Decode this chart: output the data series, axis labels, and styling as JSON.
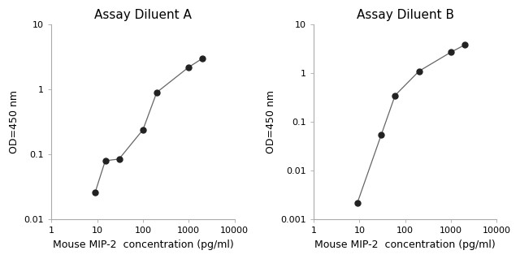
{
  "plot_A": {
    "title": "Assay Diluent A",
    "x": [
      9,
      15,
      30,
      100,
      200,
      1000,
      2000
    ],
    "y": [
      0.026,
      0.08,
      0.085,
      0.24,
      0.9,
      2.2,
      3.0
    ],
    "xlim": [
      1,
      10000
    ],
    "ylim": [
      0.01,
      10
    ],
    "xlabel": "Mouse MIP-2  concentration (pg/ml)",
    "ylabel": "OD=450 nm",
    "xticks": [
      1,
      10,
      100,
      1000,
      10000
    ],
    "yticks": [
      0.01,
      0.1,
      1,
      10
    ],
    "yticklabels": [
      "0.01",
      "0.1",
      "1",
      "10"
    ]
  },
  "plot_B": {
    "title": "Assay Diluent B",
    "x": [
      9,
      30,
      60,
      200,
      1000,
      2000
    ],
    "y": [
      0.0022,
      0.055,
      0.35,
      1.1,
      2.7,
      3.8
    ],
    "xlim": [
      1,
      10000
    ],
    "ylim": [
      0.001,
      10
    ],
    "xlabel": "Mouse MIP-2  concentration (pg/ml)",
    "ylabel": "OD=450 nm",
    "xticks": [
      1,
      10,
      100,
      1000,
      10000
    ],
    "yticks": [
      0.001,
      0.01,
      0.1,
      1,
      10
    ],
    "yticklabels": [
      "0.001",
      "0.01",
      "0.1",
      "1",
      "10"
    ]
  },
  "line_color": "#666666",
  "marker_color": "#222222",
  "marker_size": 5,
  "title_fontsize": 11,
  "label_fontsize": 9,
  "tick_fontsize": 8,
  "bg_color": "#ffffff",
  "spine_color": "#aaaaaa"
}
